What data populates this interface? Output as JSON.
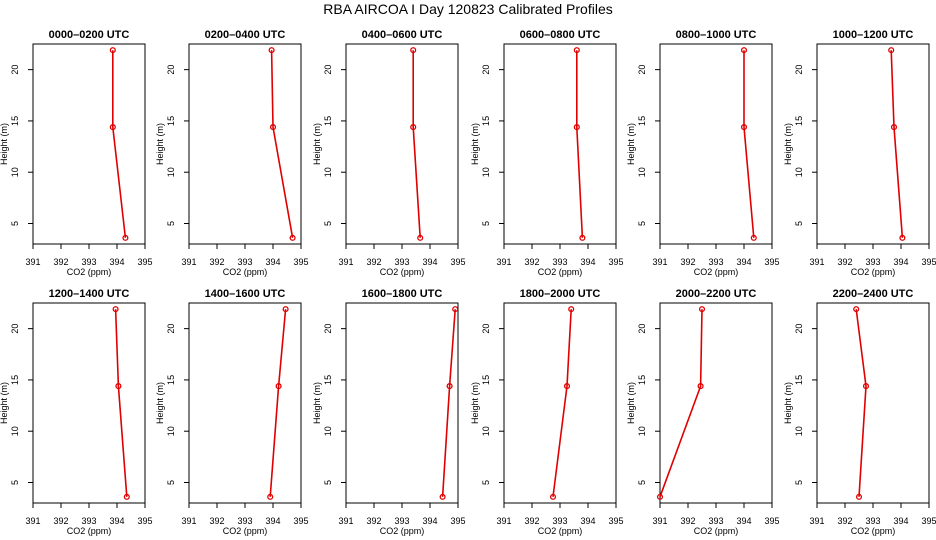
{
  "title": "RBA AIRCOA I  Day 120823  Calibrated Profiles",
  "colors": {
    "line": "#e00000",
    "axis": "#000000",
    "background": "#ffffff"
  },
  "chart_data": [
    {
      "type": "line",
      "title": "0000–0200 UTC",
      "xlabel": "CO2 (ppm)",
      "ylabel": "Height (m)",
      "xlim": [
        391,
        395
      ],
      "ylim": [
        3,
        22.5
      ],
      "x_ticks": [
        391,
        392,
        393,
        394,
        395
      ],
      "y_ticks": [
        5,
        10,
        15,
        20
      ],
      "grid": false,
      "series": [
        {
          "x": [
            394.3,
            393.85,
            393.85
          ],
          "y": [
            3.6,
            14.4,
            21.9
          ]
        }
      ]
    },
    {
      "type": "line",
      "title": "0200–0400 UTC",
      "xlabel": "CO2 (ppm)",
      "ylabel": "Height (m)",
      "xlim": [
        391,
        395
      ],
      "ylim": [
        3,
        22.5
      ],
      "x_ticks": [
        391,
        392,
        393,
        394,
        395
      ],
      "y_ticks": [
        5,
        10,
        15,
        20
      ],
      "grid": false,
      "series": [
        {
          "x": [
            394.7,
            394.0,
            393.95
          ],
          "y": [
            3.6,
            14.4,
            21.9
          ]
        }
      ]
    },
    {
      "type": "line",
      "title": "0400–0600 UTC",
      "xlabel": "CO2 (ppm)",
      "ylabel": "Height (m)",
      "xlim": [
        391,
        395
      ],
      "ylim": [
        3,
        22.5
      ],
      "x_ticks": [
        391,
        392,
        393,
        394,
        395
      ],
      "y_ticks": [
        5,
        10,
        15,
        20
      ],
      "grid": false,
      "series": [
        {
          "x": [
            393.65,
            393.4,
            393.4
          ],
          "y": [
            3.6,
            14.4,
            21.9
          ]
        }
      ]
    },
    {
      "type": "line",
      "title": "0600–0800 UTC",
      "xlabel": "CO2 (ppm)",
      "ylabel": "Height (m)",
      "xlim": [
        391,
        395
      ],
      "ylim": [
        3,
        22.5
      ],
      "x_ticks": [
        391,
        392,
        393,
        394,
        395
      ],
      "y_ticks": [
        5,
        10,
        15,
        20
      ],
      "grid": false,
      "series": [
        {
          "x": [
            393.8,
            393.6,
            393.6
          ],
          "y": [
            3.6,
            14.4,
            21.9
          ]
        }
      ]
    },
    {
      "type": "line",
      "title": "0800–1000 UTC",
      "xlabel": "CO2 (ppm)",
      "ylabel": "Height (m)",
      "xlim": [
        391,
        395
      ],
      "ylim": [
        3,
        22.5
      ],
      "x_ticks": [
        391,
        392,
        393,
        394,
        395
      ],
      "y_ticks": [
        5,
        10,
        15,
        20
      ],
      "grid": false,
      "series": [
        {
          "x": [
            394.35,
            394.0,
            394.0
          ],
          "y": [
            3.6,
            14.4,
            21.9
          ]
        }
      ]
    },
    {
      "type": "line",
      "title": "1000–1200 UTC",
      "xlabel": "CO2 (ppm)",
      "ylabel": "Height (m)",
      "xlim": [
        391,
        395
      ],
      "ylim": [
        3,
        22.5
      ],
      "x_ticks": [
        391,
        392,
        393,
        394,
        395
      ],
      "y_ticks": [
        5,
        10,
        15,
        20
      ],
      "grid": false,
      "series": [
        {
          "x": [
            394.05,
            393.75,
            393.65
          ],
          "y": [
            3.6,
            14.4,
            21.9
          ]
        }
      ]
    },
    {
      "type": "line",
      "title": "1200–1400 UTC",
      "xlabel": "CO2 (ppm)",
      "ylabel": "Height (m)",
      "xlim": [
        391,
        395
      ],
      "ylim": [
        3,
        22.5
      ],
      "x_ticks": [
        391,
        392,
        393,
        394,
        395
      ],
      "y_ticks": [
        5,
        10,
        15,
        20
      ],
      "grid": false,
      "series": [
        {
          "x": [
            394.35,
            394.05,
            393.95
          ],
          "y": [
            3.6,
            14.4,
            21.9
          ]
        }
      ]
    },
    {
      "type": "line",
      "title": "1400–1600 UTC",
      "xlabel": "CO2 (ppm)",
      "ylabel": "Height (m)",
      "xlim": [
        391,
        395
      ],
      "ylim": [
        3,
        22.5
      ],
      "x_ticks": [
        391,
        392,
        393,
        394,
        395
      ],
      "y_ticks": [
        5,
        10,
        15,
        20
      ],
      "grid": false,
      "series": [
        {
          "x": [
            393.9,
            394.2,
            394.45
          ],
          "y": [
            3.6,
            14.4,
            21.9
          ]
        }
      ]
    },
    {
      "type": "line",
      "title": "1600–1800 UTC",
      "xlabel": "CO2 (ppm)",
      "ylabel": "Height (m)",
      "xlim": [
        391,
        395
      ],
      "ylim": [
        3,
        22.5
      ],
      "x_ticks": [
        391,
        392,
        393,
        394,
        395
      ],
      "y_ticks": [
        5,
        10,
        15,
        20
      ],
      "grid": false,
      "series": [
        {
          "x": [
            394.45,
            394.7,
            394.9
          ],
          "y": [
            3.6,
            14.4,
            21.9
          ]
        }
      ]
    },
    {
      "type": "line",
      "title": "1800–2000 UTC",
      "xlabel": "CO2 (ppm)",
      "ylabel": "Height (m)",
      "xlim": [
        391,
        395
      ],
      "ylim": [
        3,
        22.5
      ],
      "x_ticks": [
        391,
        392,
        393,
        394,
        395
      ],
      "y_ticks": [
        5,
        10,
        15,
        20
      ],
      "grid": false,
      "series": [
        {
          "x": [
            392.75,
            393.25,
            393.4
          ],
          "y": [
            3.6,
            14.4,
            21.9
          ]
        }
      ]
    },
    {
      "type": "line",
      "title": "2000–2200 UTC",
      "xlabel": "CO2 (ppm)",
      "ylabel": "Height (m)",
      "xlim": [
        391,
        395
      ],
      "ylim": [
        3,
        22.5
      ],
      "x_ticks": [
        391,
        392,
        393,
        394,
        395
      ],
      "y_ticks": [
        5,
        10,
        15,
        20
      ],
      "grid": false,
      "series": [
        {
          "x": [
            391.0,
            392.45,
            392.5
          ],
          "y": [
            3.6,
            14.4,
            21.9
          ]
        }
      ]
    },
    {
      "type": "line",
      "title": "2200–2400 UTC",
      "xlabel": "CO2 (ppm)",
      "ylabel": "Height (m)",
      "xlim": [
        391,
        395
      ],
      "ylim": [
        3,
        22.5
      ],
      "x_ticks": [
        391,
        392,
        393,
        394,
        395
      ],
      "y_ticks": [
        5,
        10,
        15,
        20
      ],
      "grid": false,
      "series": [
        {
          "x": [
            392.5,
            392.75,
            392.4
          ],
          "y": [
            3.6,
            14.4,
            21.9
          ]
        }
      ]
    }
  ]
}
